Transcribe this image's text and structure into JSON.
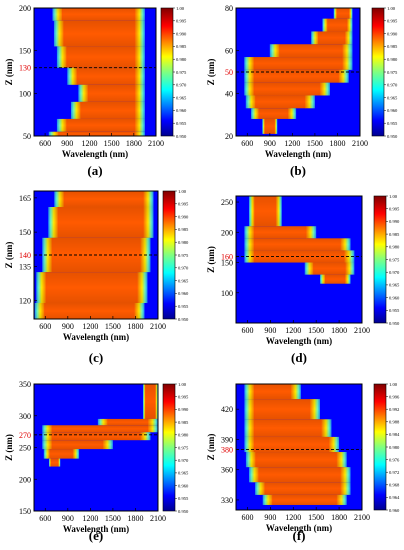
{
  "figure": {
    "panels": [
      {
        "label": "(a)",
        "xlabel": "Wavelength (nm)",
        "ylabel": "Z (nm)",
        "xticks": [
          "600",
          "900",
          "1200",
          "1500",
          "1800",
          "2100"
        ],
        "yticks": [
          "50",
          "100",
          "130",
          "150",
          "200"
        ],
        "highlight_tick": "130",
        "dashed_line_z": 130,
        "colorbar_ticks": [
          "1.00",
          "0.995",
          "0.990",
          "0.985",
          "0.980",
          "0.975",
          "0.970",
          "0.965",
          "0.960",
          "0.955",
          "0.950"
        ]
      },
      {
        "label": "(b)",
        "xlabel": "Wavelength (nm)",
        "ylabel": "Z (nm)",
        "xticks": [
          "600",
          "900",
          "1200",
          "1500",
          "1800",
          "2100"
        ],
        "yticks": [
          "20",
          "40",
          "50",
          "60",
          "80"
        ],
        "highlight_tick": "50",
        "dashed_line_z": 50,
        "colorbar_ticks": [
          "1.00",
          "0.995",
          "0.990",
          "0.985",
          "0.980",
          "0.975",
          "0.970",
          "0.965",
          "0.960",
          "0.955",
          "0.950"
        ]
      },
      {
        "label": "(c)",
        "xlabel": "Wavelength (nm)",
        "ylabel": "Z (nm)",
        "xticks": [
          "600",
          "900",
          "1200",
          "1500",
          "1800",
          "2100"
        ],
        "yticks": [
          "120",
          "135",
          "140",
          "150",
          "165"
        ],
        "highlight_tick": "140",
        "dashed_line_z": 140,
        "colorbar_ticks": [
          "1.00",
          "0.995",
          "0.990",
          "0.985",
          "0.980",
          "0.975",
          "0.970",
          "0.965",
          "0.960",
          "0.955",
          "0.950"
        ]
      },
      {
        "label": "(d)",
        "xlabel": "Wavelength (nm)",
        "ylabel": "Z (nm)",
        "xticks": [
          "600",
          "900",
          "1200",
          "1500",
          "1800",
          "2100"
        ],
        "yticks": [
          "100",
          "150",
          "160",
          "200",
          "250"
        ],
        "highlight_tick": "160",
        "dashed_line_z": 160,
        "colorbar_ticks": [
          "1.00",
          "0.995",
          "0.990",
          "0.985",
          "0.980",
          "0.975",
          "0.970",
          "0.965",
          "0.960",
          "0.955",
          "0.950"
        ]
      },
      {
        "label": "(e)",
        "xlabel": "Wavelength (nm)",
        "ylabel": "Z (nm)",
        "xticks": [
          "600",
          "900",
          "1200",
          "1500",
          "1800",
          "2100"
        ],
        "yticks": [
          "150",
          "200",
          "250",
          "270",
          "300",
          "350"
        ],
        "highlight_tick": "270",
        "dashed_line_z": 270,
        "colorbar_ticks": [
          "1.00",
          "0.995",
          "0.990",
          "0.985",
          "0.980",
          "0.975",
          "0.970",
          "0.965",
          "0.960",
          "0.955",
          "0.950"
        ]
      },
      {
        "label": "(f)",
        "xlabel": "Wavelength (nm)",
        "ylabel": "Z (nm)",
        "xticks": [
          "600",
          "900",
          "1200",
          "1500",
          "1800",
          "2100"
        ],
        "yticks": [
          "330",
          "360",
          "380",
          "390",
          "420"
        ],
        "highlight_tick": "380",
        "dashed_line_z": 380,
        "colorbar_ticks": [
          "1.00",
          "0.996",
          "0.992",
          "0.988",
          "0.984",
          "0.980",
          "0.976",
          "0.972",
          "0.968",
          "0.964",
          "0.960"
        ]
      }
    ]
  },
  "chart_data": [
    {
      "type": "heatmap",
      "panel": "(a)",
      "xlabel": "Wavelength (nm)",
      "ylabel": "Z (nm)",
      "xlim": [
        450,
        2100
      ],
      "ylim": [
        50,
        200
      ],
      "colormap": "jet",
      "colorbar_range": [
        0.95,
        1.0
      ],
      "dashed_line_z": 130,
      "high_region": "broad red band ~700-1950 nm for Z 50-200 nm, narrower 1000-1950 nm near Z ~100 nm",
      "rows": [
        {
          "z": 200,
          "x_start": 700,
          "x_end": 1950
        },
        {
          "z": 170,
          "x_start": 720,
          "x_end": 1950
        },
        {
          "z": 140,
          "x_start": 760,
          "x_end": 1950
        },
        {
          "z": 120,
          "x_start": 900,
          "x_end": 1950
        },
        {
          "z": 100,
          "x_start": 1050,
          "x_end": 1950
        },
        {
          "z": 80,
          "x_start": 950,
          "x_end": 1950
        },
        {
          "z": 60,
          "x_start": 760,
          "x_end": 1950
        },
        {
          "z": 50,
          "x_start": 650,
          "x_end": 1950
        }
      ]
    },
    {
      "type": "heatmap",
      "panel": "(b)",
      "xlabel": "Wavelength (nm)",
      "ylabel": "Z (nm)",
      "xlim": [
        450,
        2100
      ],
      "ylim": [
        20,
        80
      ],
      "colormap": "jet",
      "colorbar_range": [
        0.95,
        1.0
      ],
      "dashed_line_z": 50,
      "rows": [
        {
          "z": 78,
          "x_start": 1750,
          "x_end": 2000
        },
        {
          "z": 72,
          "x_start": 1600,
          "x_end": 2000
        },
        {
          "z": 66,
          "x_start": 1450,
          "x_end": 2000
        },
        {
          "z": 60,
          "x_start": 900,
          "x_end": 2000
        },
        {
          "z": 54,
          "x_start": 560,
          "x_end": 2000
        },
        {
          "z": 48,
          "x_start": 560,
          "x_end": 1950
        },
        {
          "z": 42,
          "x_start": 560,
          "x_end": 1700
        },
        {
          "z": 36,
          "x_start": 580,
          "x_end": 1500
        },
        {
          "z": 30,
          "x_start": 650,
          "x_end": 1250
        },
        {
          "z": 26,
          "x_start": 800,
          "x_end": 1000
        }
      ]
    },
    {
      "type": "heatmap",
      "panel": "(c)",
      "xlabel": "Wavelength (nm)",
      "ylabel": "Z (nm)",
      "xlim": [
        450,
        2100
      ],
      "ylim": [
        112,
        168
      ],
      "colormap": "jet",
      "colorbar_range": [
        0.95,
        1.0
      ],
      "dashed_line_z": 140,
      "rows": [
        {
          "z": 167,
          "x_start": 720,
          "x_end": 2040
        },
        {
          "z": 155,
          "x_start": 640,
          "x_end": 2040
        },
        {
          "z": 140,
          "x_start": 560,
          "x_end": 2000
        },
        {
          "z": 125,
          "x_start": 480,
          "x_end": 1960
        },
        {
          "z": 113,
          "x_start": 460,
          "x_end": 1920
        }
      ]
    },
    {
      "type": "heatmap",
      "panel": "(d)",
      "xlabel": "Wavelength (nm)",
      "ylabel": "Z (nm)",
      "xlim": [
        450,
        2100
      ],
      "ylim": [
        50,
        260
      ],
      "colormap": "jet",
      "colorbar_range": [
        0.95,
        1.0
      ],
      "dashed_line_z": 160,
      "rows": [
        {
          "z": 220,
          "x_start": 620,
          "x_end": 1050
        },
        {
          "z": 200,
          "x_start": 560,
          "x_end": 1500
        },
        {
          "z": 180,
          "x_start": 560,
          "x_end": 1950
        },
        {
          "z": 160,
          "x_start": 560,
          "x_end": 2000
        },
        {
          "z": 140,
          "x_start": 1350,
          "x_end": 2000
        },
        {
          "z": 120,
          "x_start": 1550,
          "x_end": 1950
        }
      ]
    },
    {
      "type": "heatmap",
      "panel": "(e)",
      "xlabel": "Wavelength (nm)",
      "ylabel": "Z (nm)",
      "xlim": [
        450,
        2100
      ],
      "ylim": [
        150,
        350
      ],
      "colormap": "jet",
      "colorbar_range": [
        0.95,
        1.0
      ],
      "dashed_line_z": 270,
      "rows": [
        {
          "z": 300,
          "x_start": 1900,
          "x_end": 2100
        },
        {
          "z": 290,
          "x_start": 1300,
          "x_end": 2100
        },
        {
          "z": 280,
          "x_start": 560,
          "x_end": 2100
        },
        {
          "z": 268,
          "x_start": 560,
          "x_end": 2000
        },
        {
          "z": 255,
          "x_start": 560,
          "x_end": 1500
        },
        {
          "z": 240,
          "x_start": 580,
          "x_end": 1050
        },
        {
          "z": 225,
          "x_start": 650,
          "x_end": 800
        }
      ]
    },
    {
      "type": "heatmap",
      "panel": "(f)",
      "xlabel": "Wavelength (nm)",
      "ylabel": "Z (nm)",
      "xlim": [
        450,
        2100
      ],
      "ylim": [
        320,
        445
      ],
      "colormap": "jet",
      "colorbar_range": [
        0.96,
        1.0
      ],
      "dashed_line_z": 380,
      "rows": [
        {
          "z": 440,
          "x_start": 560,
          "x_end": 1300
        },
        {
          "z": 420,
          "x_start": 560,
          "x_end": 1550
        },
        {
          "z": 400,
          "x_start": 560,
          "x_end": 1700
        },
        {
          "z": 385,
          "x_start": 560,
          "x_end": 1800
        },
        {
          "z": 370,
          "x_start": 580,
          "x_end": 1900
        },
        {
          "z": 355,
          "x_start": 620,
          "x_end": 1950
        },
        {
          "z": 340,
          "x_start": 700,
          "x_end": 1950
        },
        {
          "z": 330,
          "x_start": 800,
          "x_end": 1900
        }
      ]
    }
  ]
}
